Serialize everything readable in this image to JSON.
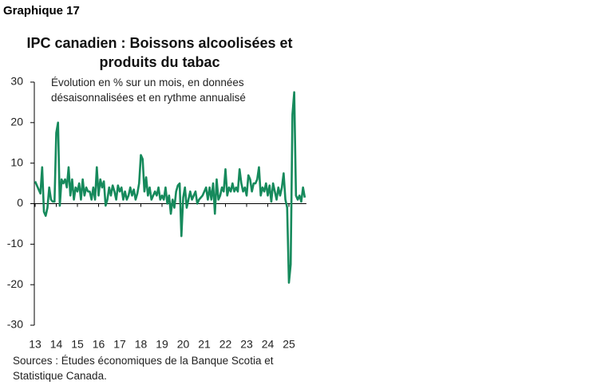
{
  "chart_data": {
    "type": "line",
    "label": "Graphique 17",
    "title": "IPC canadien : Boissons alcoolisées et produits du tabac",
    "annotation": "Évolution en % sur un mois, en données désaisonnalisées et en rythme annualisé",
    "source": "Sources : Études économiques de la Banque Scotia et Statistique Canada.",
    "categories": [
      "13",
      null,
      null,
      null,
      null,
      null,
      null,
      null,
      null,
      null,
      null,
      null,
      "14",
      null,
      null,
      null,
      null,
      null,
      null,
      null,
      null,
      null,
      null,
      null,
      "15",
      null,
      null,
      null,
      null,
      null,
      null,
      null,
      null,
      null,
      null,
      null,
      "16",
      null,
      null,
      null,
      null,
      null,
      null,
      null,
      null,
      null,
      null,
      null,
      "17",
      null,
      null,
      null,
      null,
      null,
      null,
      null,
      null,
      null,
      null,
      null,
      "18",
      null,
      null,
      null,
      null,
      null,
      null,
      null,
      null,
      null,
      null,
      null,
      "19",
      null,
      null,
      null,
      null,
      null,
      null,
      null,
      null,
      null,
      null,
      null,
      "20",
      null,
      null,
      null,
      null,
      null,
      null,
      null,
      null,
      null,
      null,
      null,
      "21",
      null,
      null,
      null,
      null,
      null,
      null,
      null,
      null,
      null,
      null,
      null,
      "22",
      null,
      null,
      null,
      null,
      null,
      null,
      null,
      null,
      null,
      null,
      null,
      "23",
      null,
      null,
      null,
      null,
      null,
      null,
      null,
      null,
      null,
      null,
      null,
      "24",
      null,
      null,
      null,
      null,
      null,
      null,
      null,
      null,
      null,
      null,
      null,
      "25",
      null,
      null,
      null,
      null,
      null,
      null,
      null,
      null,
      null
    ],
    "values": [
      5.5,
      4.5,
      3.5,
      2.5,
      9,
      -2,
      -3,
      -1,
      4,
      1,
      0.5,
      0.5,
      17.5,
      20,
      -0.5,
      6,
      5,
      6,
      4,
      9,
      2,
      6,
      1,
      4,
      3,
      5,
      1,
      6,
      2,
      4,
      3,
      3,
      1,
      4,
      1,
      9,
      2,
      6,
      4,
      5.5,
      -0.5,
      1,
      4,
      2,
      4.5,
      3,
      1,
      4.5,
      3,
      4,
      1,
      3,
      1,
      2,
      4,
      2,
      3.5,
      1,
      2.5,
      5,
      12,
      11,
      3,
      6.5,
      2,
      4,
      1,
      2,
      3,
      2,
      4,
      1,
      2,
      1,
      4,
      0,
      2,
      -2.5,
      1,
      -1,
      3,
      4.5,
      5,
      -8,
      1.5,
      4,
      -1,
      1,
      3,
      1,
      2,
      3,
      0,
      1,
      1.5,
      2,
      3,
      4,
      1,
      4,
      1,
      5,
      -2.5,
      6,
      1,
      2,
      4,
      3,
      8.5,
      2,
      4,
      3,
      5,
      3,
      4,
      3,
      8.5,
      5,
      3,
      4,
      2,
      7,
      6,
      3,
      5,
      5,
      6,
      9,
      2,
      4,
      3,
      5,
      2,
      4.5,
      0.5,
      5,
      3,
      1,
      4,
      2,
      4,
      7.5,
      1,
      -1,
      -19.5,
      -15,
      22,
      27.5,
      2,
      1,
      2,
      0.5,
      4,
      1.5
    ],
    "color": "#168a5c",
    "ylim": [
      -30,
      30
    ],
    "yticks": [
      30,
      20,
      10,
      0,
      -10,
      -20,
      -30
    ]
  }
}
